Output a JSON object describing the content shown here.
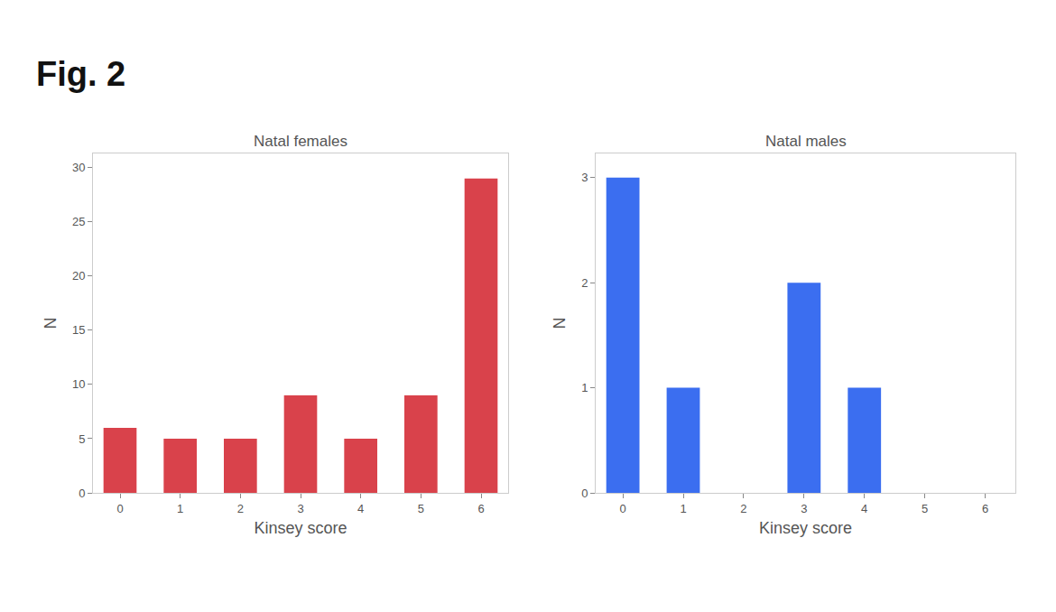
{
  "title": "Fig. 2",
  "chart_data": [
    {
      "type": "bar",
      "title": "Natal females",
      "x_label": "Kinsey score",
      "y_label": "N",
      "x": [
        0,
        1,
        2,
        3,
        4,
        5,
        6
      ],
      "values": [
        6,
        5,
        5,
        9,
        5,
        9,
        29
      ],
      "color": "#d9424b",
      "xlim": [
        -0.45,
        6.45
      ],
      "xticks": [
        0,
        1,
        2,
        3,
        4,
        5,
        6
      ],
      "ylim": [
        0,
        31.3
      ],
      "yticks": [
        0,
        5,
        10,
        15,
        20,
        25,
        30
      ],
      "grid": false
    },
    {
      "type": "bar",
      "title": "Natal males",
      "x_label": "Kinsey score",
      "y_label": "N",
      "x": [
        0,
        1,
        2,
        3,
        4,
        5,
        6
      ],
      "values": [
        3,
        1,
        0,
        2,
        1,
        0,
        0
      ],
      "color": "#3b6ef0",
      "xlim": [
        -0.45,
        6.5
      ],
      "xticks": [
        0,
        1,
        2,
        3,
        4,
        5,
        6
      ],
      "ylim": [
        0,
        3.23
      ],
      "yticks": [
        0,
        1,
        2,
        3
      ],
      "grid": false
    }
  ]
}
